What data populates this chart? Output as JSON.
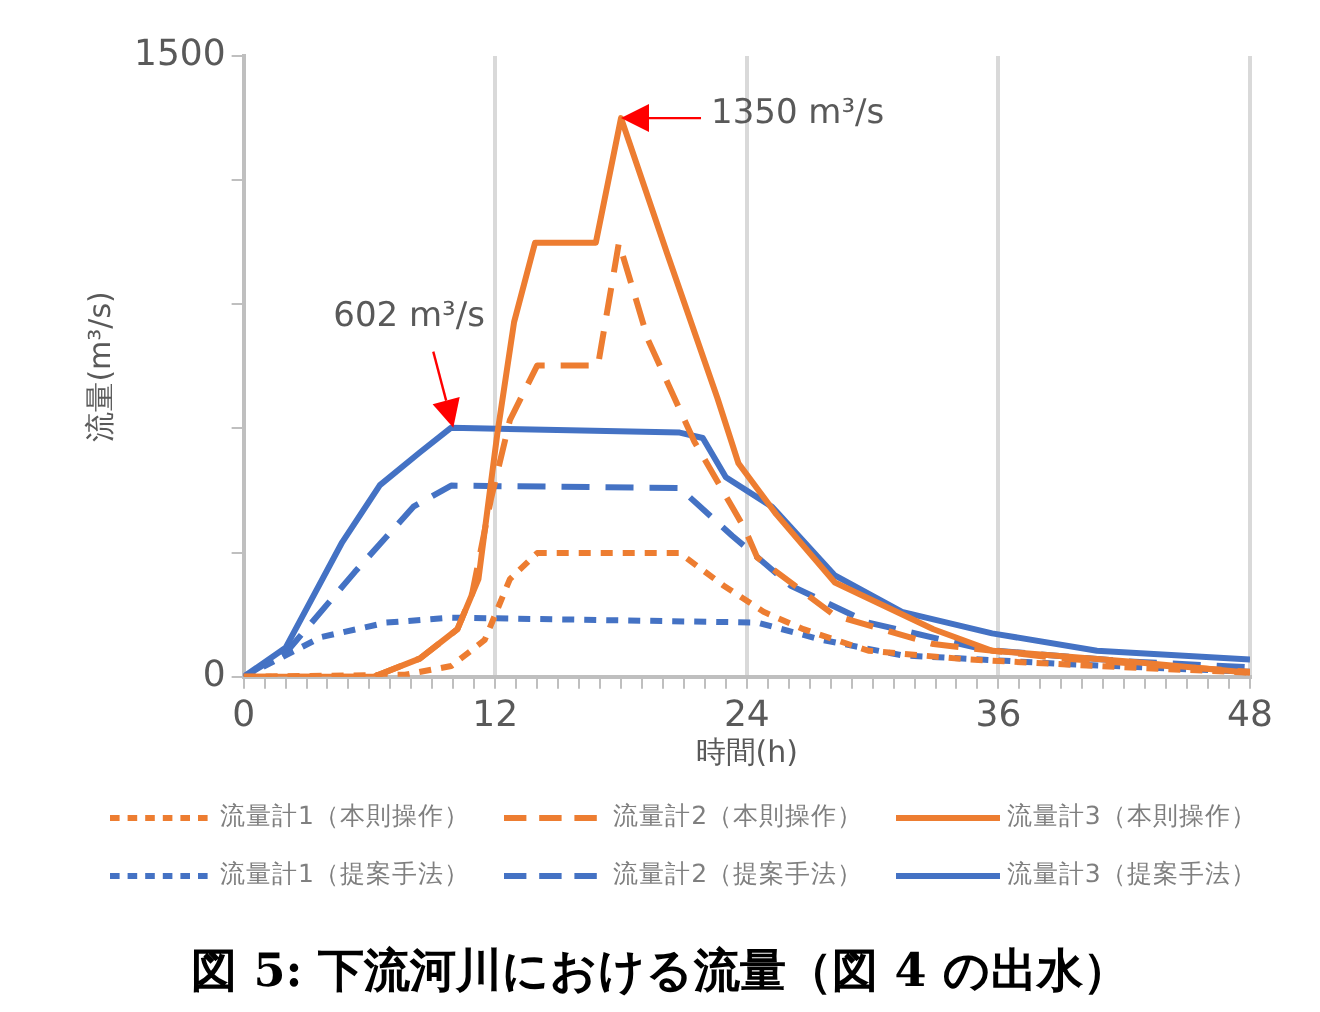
{
  "chart_data": {
    "type": "line",
    "title": "図 5: 下流河川における流量（図 4 の出水）",
    "xlabel": "時間(h)",
    "ylabel": "流量(m³/s)",
    "xlim": [
      0,
      48
    ],
    "ylim": [
      0,
      1500
    ],
    "xticks": [
      0,
      {
        "value": 1,
        "label": null
      },
      {
        "value": 2,
        "label": null
      },
      {
        "value": 3,
        "label": null
      },
      {
        "value": 4,
        "label": null
      },
      {
        "value": 5,
        "label": null
      },
      {
        "value": 6,
        "label": null
      },
      {
        "value": 7,
        "label": null
      },
      {
        "value": 8,
        "label": null
      },
      {
        "value": 9,
        "label": null
      },
      {
        "value": 10,
        "label": null
      },
      {
        "value": 11,
        "label": null
      },
      12,
      {
        "value": 13,
        "label": null
      },
      {
        "value": 14,
        "label": null
      },
      {
        "value": 15,
        "label": null
      },
      {
        "value": 16,
        "label": null
      },
      {
        "value": 17,
        "label": null
      },
      {
        "value": 18,
        "label": null
      },
      {
        "value": 19,
        "label": null
      },
      {
        "value": 20,
        "label": null
      },
      {
        "value": 21,
        "label": null
      },
      {
        "value": 22,
        "label": null
      },
      {
        "value": 23,
        "label": null
      },
      24,
      {
        "value": 25,
        "label": null
      },
      {
        "value": 26,
        "label": null
      },
      {
        "value": 27,
        "label": null
      },
      {
        "value": 28,
        "label": null
      },
      {
        "value": 29,
        "label": null
      },
      {
        "value": 30,
        "label": null
      },
      {
        "value": 31,
        "label": null
      },
      {
        "value": 32,
        "label": null
      },
      {
        "value": 33,
        "label": null
      },
      {
        "value": 34,
        "label": null
      },
      {
        "value": 35,
        "label": null
      },
      36,
      {
        "value": 37,
        "label": null
      },
      {
        "value": 38,
        "label": null
      },
      {
        "value": 39,
        "label": null
      },
      {
        "value": 40,
        "label": null
      },
      {
        "value": 41,
        "label": null
      },
      {
        "value": 42,
        "label": null
      },
      {
        "value": 43,
        "label": null
      },
      {
        "value": 44,
        "label": null
      },
      {
        "value": 45,
        "label": null
      },
      {
        "value": 46,
        "label": null
      },
      {
        "value": 47,
        "label": null
      },
      48
    ],
    "yticks": [
      0,
      {
        "value": 300,
        "label": null
      },
      {
        "value": 600,
        "label": null
      },
      {
        "value": 900,
        "label": null
      },
      {
        "value": 1200,
        "label": null
      },
      1500
    ],
    "grid": "x",
    "legend": "bottom",
    "marker": "none",
    "series": [
      {
        "name": "流量計1（本則操作）",
        "color": "#ed7d31",
        "line_style": "dotted",
        "x": [
          0,
          7.7,
          9.9,
          11.5,
          12.7,
          14,
          20.8,
          22.9,
          24.8,
          26.7,
          29.8,
          34.5,
          40.7,
          48
        ],
        "values": [
          0,
          5,
          26,
          89,
          236,
          299,
          299,
          220,
          157,
          115,
          63,
          42,
          26,
          10
        ]
      },
      {
        "name": "流量計2（本則操作）",
        "color": "#ed7d31",
        "line_style": "dashed",
        "x": [
          0,
          6.2,
          8.4,
          10.2,
          10.9,
          11.8,
          12.7,
          14,
          16.9,
          17.9,
          19.3,
          21.5,
          23.9,
          24.5,
          28.2,
          32.9,
          39.1,
          48
        ],
        "values": [
          0,
          0,
          44,
          115,
          201,
          430,
          620,
          752,
          752,
          1049,
          813,
          568,
          358,
          288,
          148,
          79,
          44,
          12
        ]
      },
      {
        "name": "流量計3（本則操作）",
        "color": "#ed7d31",
        "line_style": "solid",
        "x": [
          0,
          6.2,
          8.4,
          10.2,
          11.2,
          12.1,
          12.9,
          13.9,
          16.8,
          18,
          20.2,
          22.6,
          23.6,
          25.4,
          28.2,
          32.9,
          35.7,
          42.2,
          48
        ],
        "values": [
          0,
          0,
          44,
          115,
          236,
          587,
          857,
          1049,
          1049,
          1350,
          1023,
          673,
          516,
          393,
          228,
          115,
          63,
          37,
          10
        ]
      },
      {
        "name": "流量計1（提案手法）",
        "color": "#4472c4",
        "line_style": "dotted",
        "x": [
          0,
          3.7,
          6.8,
          9.9,
          24.5,
          27.6,
          31.4,
          39.1,
          48
        ],
        "values": [
          0,
          96,
          131,
          143,
          131,
          89,
          52,
          31,
          12
        ]
      },
      {
        "name": "流量計2（提案手法）",
        "color": "#4472c4",
        "line_style": "dashed",
        "x": [
          0,
          2.1,
          5.3,
          8.1,
          9.9,
          20.8,
          23.3,
          26.1,
          29.8,
          35.4,
          42.2,
          48
        ],
        "values": [
          0,
          63,
          253,
          411,
          462,
          456,
          341,
          220,
          131,
          65,
          37,
          23
        ]
      },
      {
        "name": "流量計3（提案手法）",
        "color": "#4472c4",
        "line_style": "solid",
        "x": [
          0,
          2,
          4.7,
          6.5,
          8.4,
          9.9,
          20.8,
          21.9,
          23,
          25.2,
          28.2,
          31.4,
          35.7,
          40.7,
          48
        ],
        "values": [
          0,
          70,
          325,
          463,
          542,
          602,
          590,
          577,
          482,
          411,
          245,
          157,
          105,
          63,
          42
        ]
      }
    ],
    "annotations": [
      {
        "text": "602 m³/s",
        "x": 10,
        "y": 602
      },
      {
        "text": "1350 m³/s",
        "x": 18,
        "y": 1350
      }
    ]
  }
}
